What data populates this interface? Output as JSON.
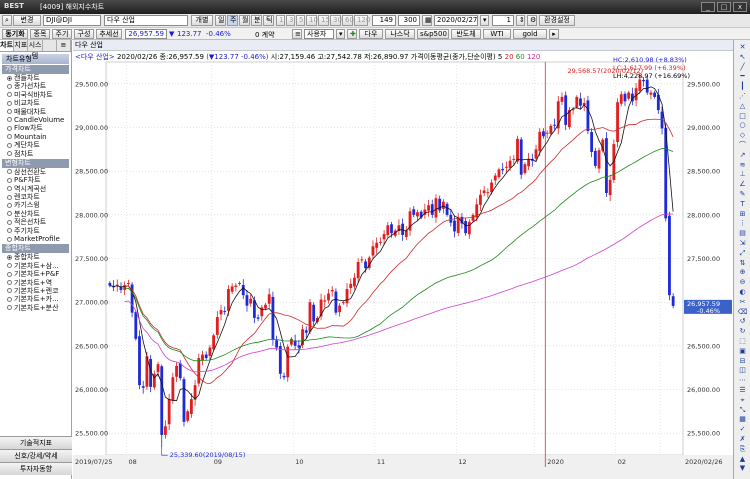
{
  "titlebar": {
    "logo": "BEST",
    "title": "[4009] 해외지수차트",
    "buttons": [
      "_",
      "□",
      "x"
    ]
  },
  "toolbar1": {
    "change_btn": "변경",
    "code": "DJI@DJI",
    "name_btn": "다우 산업",
    "period_btn": "개별",
    "periods": [
      "일",
      "주",
      "월",
      "분",
      "틱"
    ],
    "intervals": [
      "1",
      "3",
      "5",
      "10",
      "15",
      "30",
      "60",
      "120"
    ],
    "count1": "149",
    "count2": "300",
    "date": "2020/02/27",
    "spin": "1",
    "settings_btn": "환경설정"
  },
  "toolbar2": {
    "left_tab": "동기화",
    "items": [
      "종목",
      "주기",
      "구성",
      "추세선"
    ],
    "price": "26,957.59",
    "change": "123.77",
    "change_pct": "-0.46%",
    "count_label": "0 계약",
    "user_btn": "사용자",
    "indices": [
      "다우",
      "나스닥",
      "s&p500",
      "반도체",
      "WTI",
      "gold"
    ]
  },
  "leftpanel": {
    "tabs": [
      "차트",
      "지표",
      "시스템",
      "",
      "≡"
    ],
    "header": "차트유형",
    "groups": [
      {
        "label": "가격차트",
        "items": [
          "캔들차트",
          "종가선차트",
          "미국식바차트",
          "비교차트",
          "매물대차트",
          "CandleVolume",
          "Flow차트",
          "Mountain",
          "계단차트",
          "점차트"
        ]
      },
      {
        "label": "변형차트",
        "items": [
          "삼선전환도",
          "P&F차트",
          "역시계곡선",
          "렌코차트",
          "카기스윙",
          "분산차트",
          "적은선차트",
          "주기차트",
          "MarketProfile"
        ]
      },
      {
        "label": "종합차트",
        "items": [
          "종합차트",
          "기본차트+삼...",
          "기본차트+P&F",
          "기본차트+역",
          "기본차트+렌코",
          "기본차트+카...",
          "기본차트+분산"
        ]
      }
    ],
    "bottom_buttons": [
      "기술적지표",
      "신호/강세/약세",
      "투자자동향"
    ]
  },
  "chart": {
    "header_title": "다우 산업",
    "info": {
      "name": "<다우 산업>",
      "date_close": "2020/02/26 종:26,957.59",
      "change": "(▼123.77 -0.46%)",
      "ohlc": "시:27,159.46 고:27,542.78 저:26,890.97",
      "ma_label": "가격이동평균(종가,단순이평)",
      "ma_periods": [
        "5",
        "20",
        "60",
        "120"
      ]
    },
    "hc": "HC:2,610.98 (+8.83%)",
    "lc": "LC:1,617.99 (+6.39%)",
    "lh": "LH:4,228.97 (+16.69%)",
    "high_label": "29,568.57(2020/02/12)",
    "low_label": "25,339.60(2019/08/15)",
    "current_price_label": "26,957.59",
    "current_pct_label": "-0.46%",
    "y_ticks": [
      "29,500.00",
      "29,000.00",
      "28,500.00",
      "28,000.00",
      "27,500.00",
      "27,000.00",
      "26,500.00",
      "26,000.00",
      "25,500.00"
    ],
    "x_labels": [
      "2019/07/25",
      "08",
      "09",
      "10",
      "11",
      "12",
      "2020",
      "02",
      "2020/02/26"
    ],
    "colors": {
      "up": "#e01e1e",
      "down": "#1e2ad8",
      "ma5": "#111111",
      "ma20": "#d02a2a",
      "ma60": "#1a8a1a",
      "ma120": "#d040d0",
      "vline": "#e53030"
    }
  },
  "chart_data": {
    "type": "candlestick",
    "title": "다우 산업",
    "ylim": [
      25250,
      29750
    ],
    "x_range": [
      "2019/07/25",
      "2020/02/26"
    ],
    "last_close": 26957.59,
    "high": {
      "value": 29568.57,
      "date": "2020/02/12"
    },
    "low": {
      "value": 25339.6,
      "date": "2019/08/15"
    },
    "series": [
      {
        "name": "5",
        "type": "line"
      },
      {
        "name": "20",
        "type": "line"
      },
      {
        "name": "60",
        "type": "line"
      },
      {
        "name": "120",
        "type": "line"
      }
    ],
    "closes": [
      27190,
      27170,
      27200,
      27140,
      27195,
      27220,
      26880,
      26580,
      26050,
      26020,
      26380,
      26030,
      26180,
      26290,
      25480,
      25579,
      25890,
      26140,
      26270,
      26130,
      25630,
      25750,
      25890,
      26050,
      26360,
      26400,
      26360,
      26480,
      26620,
      26830,
      26910,
      26890,
      27150,
      27180,
      27190,
      27220,
      27080,
      26960,
      27040,
      26820,
      26810,
      26940,
      26970,
      27090,
      26570,
      26480,
      26180,
      26140,
      26490,
      26580,
      26500,
      26480,
      26690,
      26650,
      27000,
      26780,
      26820,
      27030,
      27020,
      27100,
      27140,
      26880,
      26960,
      27000,
      27150,
      27210,
      27280,
      27460,
      27490,
      27390,
      27510,
      27640,
      27680,
      27690,
      27780,
      27880,
      27790,
      27820,
      27880,
      27770,
      27820,
      28040,
      28000,
      28030,
      27970,
      28060,
      28110,
      28000,
      28190,
      28050,
      28150,
      28000,
      27910,
      27810,
      27970,
      27900,
      27790,
      27920,
      28000,
      28120,
      28230,
      28280,
      28260,
      28370,
      28450,
      28520,
      28510,
      28550,
      28620,
      28640,
      28870,
      28460,
      28580,
      28640,
      28620,
      28750,
      28950,
      28900,
      28940,
      29020,
      29020,
      29300,
      29350,
      29030,
      29200,
      29210,
      29350,
      29250,
      29280,
      28960,
      28720,
      28560,
      28740,
      28860,
      28250,
      28400,
      28810,
      29290,
      29380,
      29300,
      29400,
      29300,
      29450,
      29550,
      29530,
      29400,
      29400,
      29350,
      29200,
      28990,
      27960,
      27080,
      26957
    ]
  }
}
